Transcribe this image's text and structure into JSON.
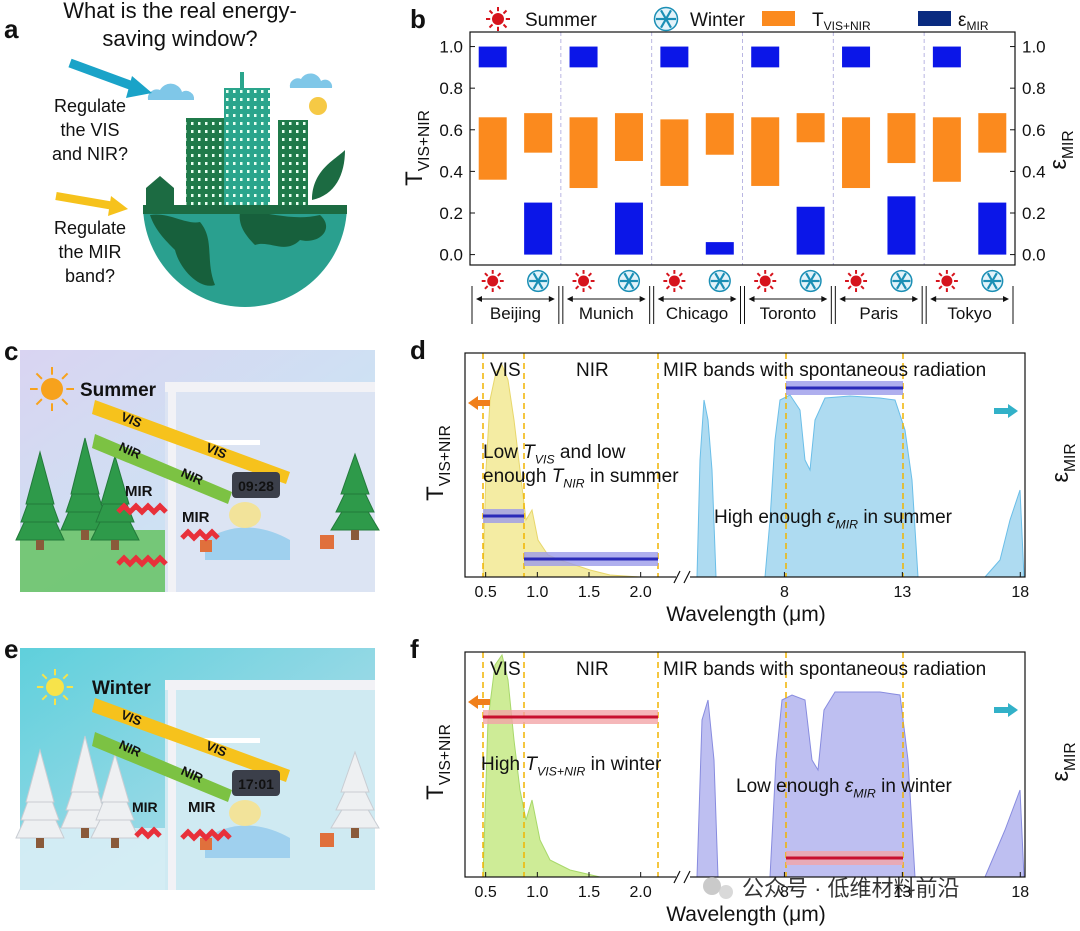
{
  "panels": {
    "a": {
      "letter": "a",
      "title": [
        "What is the real energy-",
        "saving window?"
      ],
      "q1": [
        "Regulate",
        "the VIS",
        "and NIR?"
      ],
      "q2": [
        "Regulate",
        "the MIR",
        "band?"
      ]
    },
    "c": {
      "letter": "c",
      "season": "Summer",
      "rays": [
        "VIS",
        "VIS",
        "NIR",
        "NIR",
        "MIR",
        "MIR"
      ],
      "clock": "09:28"
    },
    "e": {
      "letter": "e",
      "season": "Winter",
      "rays": [
        "VIS",
        "VIS",
        "NIR",
        "NIR",
        "MIR",
        "MIR"
      ],
      "clock": "17:01"
    }
  },
  "chart_data": [
    {
      "type": "range_bar",
      "letter": "b",
      "categories": [
        "Beijing",
        "Munich",
        "Chicago",
        "Toronto",
        "Paris",
        "Tokyo"
      ],
      "seasons": [
        "Summer",
        "Winter"
      ],
      "series": [
        {
          "name": "T",
          "sub": "VIS+NIR",
          "color": "#fb8a1e",
          "legend_color": "#fb8a1e",
          "values": [
            [
              [
                0.36,
                0.66
              ],
              [
                0.49,
                0.68
              ]
            ],
            [
              [
                0.32,
                0.66
              ],
              [
                0.45,
                0.68
              ]
            ],
            [
              [
                0.33,
                0.65
              ],
              [
                0.48,
                0.68
              ]
            ],
            [
              [
                0.33,
                0.66
              ],
              [
                0.54,
                0.68
              ]
            ],
            [
              [
                0.32,
                0.66
              ],
              [
                0.44,
                0.68
              ]
            ],
            [
              [
                0.35,
                0.66
              ],
              [
                0.49,
                0.68
              ]
            ]
          ]
        },
        {
          "name": "ε",
          "sub": "MIR",
          "color": "#0b16e8",
          "legend_color": "#0a2b80",
          "values": [
            [
              [
                0.9,
                1.0
              ],
              [
                0,
                0.25
              ]
            ],
            [
              [
                0.9,
                1.0
              ],
              [
                0,
                0.25
              ]
            ],
            [
              [
                0.9,
                1.0
              ],
              [
                0,
                0.06
              ]
            ],
            [
              [
                0.9,
                1.0
              ],
              [
                0,
                0.23
              ]
            ],
            [
              [
                0.9,
                1.0
              ],
              [
                0,
                0.28
              ]
            ],
            [
              [
                0.9,
                1.0
              ],
              [
                0,
                0.25
              ]
            ]
          ]
        }
      ],
      "ylabel": {
        "main": "T",
        "sub": "VIS+NIR"
      },
      "y2label": {
        "main": "ε",
        "sub": "MIR"
      },
      "ylim": [
        -0.05,
        1.07
      ],
      "yticks": [
        {
          "value": 0,
          "label": "0.0"
        },
        0.2,
        0.4,
        0.6,
        0.8,
        {
          "value": 1,
          "label": "1.0"
        }
      ],
      "y2lim": [
        -0.05,
        1.07
      ],
      "y2ticks": [
        {
          "value": 0,
          "label": "0.0"
        },
        0.2,
        0.4,
        0.6,
        0.8,
        {
          "value": 1,
          "label": "1.0"
        }
      ]
    },
    {
      "type": "spectrum",
      "letter": "d",
      "theme": "summer",
      "bands": [
        "VIS",
        "NIR",
        "MIR bands with spontaneous radiation"
      ],
      "ylabel": {
        "main": "T",
        "sub": "VIS+NIR"
      },
      "y2label": {
        "main": "ε",
        "sub": "MIR"
      },
      "xlabel": "Wavelength (μm)",
      "segments": [
        {
          "xlim": [
            0.3,
            2.4
          ],
          "xticks": [
            0.5,
            {
              "value": 1,
              "label": "1.0"
            },
            1.5,
            {
              "value": 2,
              "label": "2.0"
            }
          ]
        },
        {
          "xlim": [
            3.7,
            18.2
          ],
          "xticks": [
            8,
            13,
            18
          ]
        }
      ],
      "notes": [
        [
          [
            {
              "t": "Low "
            },
            {
              "t": "T",
              "s": "i"
            },
            {
              "t": "VIS",
              "s": "sub"
            },
            {
              "t": " and low"
            }
          ],
          [
            {
              "t": "enough "
            },
            {
              "t": "T",
              "s": "i"
            },
            {
              "t": "NIR",
              "s": "sub"
            },
            {
              "t": " in summer"
            }
          ]
        ],
        [
          [
            {
              "t": "High enough "
            },
            {
              "t": "ε",
              "s": "i"
            },
            {
              "t": "MIR",
              "s": "sub"
            },
            {
              "t": " in summer"
            }
          ]
        ]
      ]
    },
    {
      "type": "spectrum",
      "letter": "f",
      "theme": "winter",
      "bands": [
        "VIS",
        "NIR",
        "MIR bands with spontaneous radiation"
      ],
      "ylabel": {
        "main": "T",
        "sub": "VIS+NIR"
      },
      "y2label": {
        "main": "ε",
        "sub": "MIR"
      },
      "xlabel": "Wavelength (μm)",
      "segments": [
        {
          "xlim": [
            0.3,
            2.4
          ],
          "xticks": [
            0.5,
            {
              "value": 1,
              "label": "1.0"
            },
            1.5,
            {
              "value": 2,
              "label": "2.0"
            }
          ]
        },
        {
          "xlim": [
            3.7,
            18.2
          ],
          "xticks": [
            8,
            13,
            18
          ]
        }
      ],
      "notes": [
        [
          [
            {
              "t": "High "
            },
            {
              "t": "T",
              "s": "i"
            },
            {
              "t": "VIS+NIR",
              "s": "sub"
            },
            {
              "t": " in winter"
            }
          ]
        ],
        [
          [
            {
              "t": "Low enough "
            },
            {
              "t": "ε",
              "s": "i"
            },
            {
              "t": "MIR",
              "s": "sub"
            },
            {
              "t": " in winter"
            }
          ]
        ]
      ]
    }
  ],
  "watermark": "公众号 · 低维材料前沿"
}
